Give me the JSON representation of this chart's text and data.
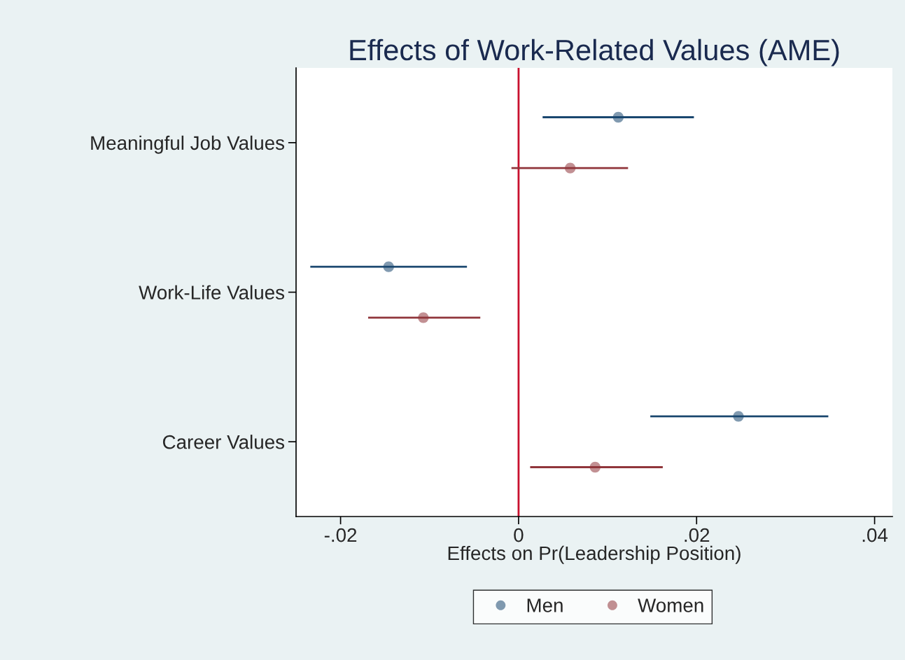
{
  "chart_data": {
    "type": "scatter",
    "orientation": "horizontal",
    "title": "Effects of Work-Related Values (AME)",
    "xlabel": "Effects on Pr(Leadership Position)",
    "categories": [
      "Meaningful Job Values",
      "Work-Life Values",
      "Career Values"
    ],
    "series": [
      {
        "name": "Men",
        "color": "#1a476f",
        "values": [
          0.0112,
          -0.0146,
          0.0247
        ],
        "errors": [
          [
            0.0027,
            0.0197
          ],
          [
            -0.0234,
            -0.0058
          ],
          [
            0.0148,
            0.0348
          ]
        ]
      },
      {
        "name": "Women",
        "color": "#90353b",
        "values": [
          0.0058,
          -0.0107,
          0.0086
        ],
        "errors": [
          [
            -0.0008,
            0.0123
          ],
          [
            -0.0169,
            -0.0043
          ],
          [
            0.0013,
            0.0162
          ]
        ]
      }
    ],
    "xlim": [
      -0.025,
      0.042
    ],
    "xticks": [
      {
        "value": -0.02,
        "label": "-.02"
      },
      0,
      {
        "value": 0.02,
        "label": ".02"
      },
      {
        "value": 0.04,
        "label": ".04"
      }
    ],
    "ref_lines": [
      {
        "axis": "x",
        "value": 0,
        "color": "#c8102e"
      }
    ],
    "marker": "circle",
    "grid": false,
    "legend": "bottom"
  }
}
